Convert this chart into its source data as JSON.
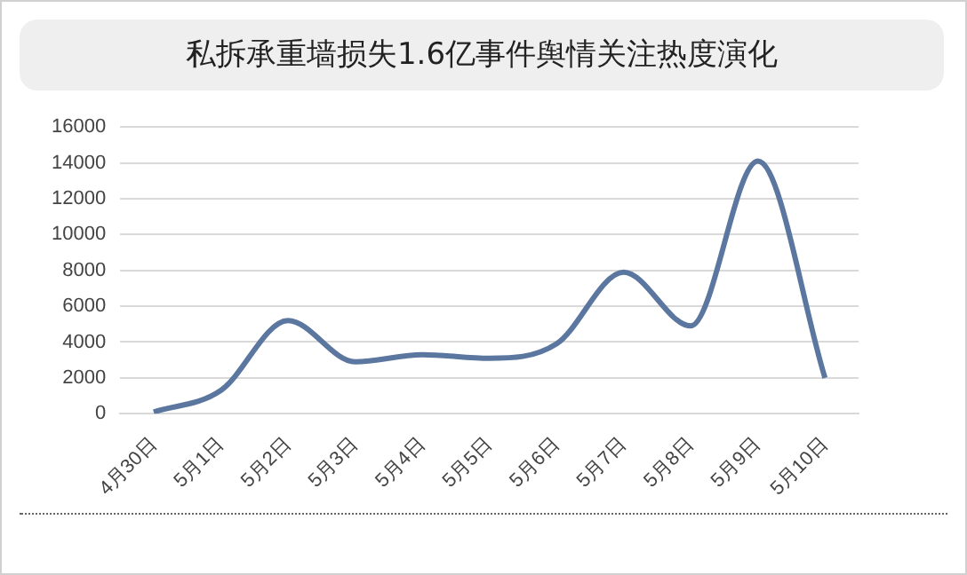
{
  "chart_data": {
    "type": "line",
    "title": "私拆承重墙损失1.6亿事件舆情关注热度演化",
    "categories": [
      "4月30日",
      "5月1日",
      "5月2日",
      "5月3日",
      "5月4日",
      "5月5日",
      "5月6日",
      "5月7日",
      "5月8日",
      "5月9日",
      "5月10日"
    ],
    "series": [
      {
        "color": "#5b77a0",
        "values": [
          100,
          1300,
          5200,
          2900,
          3300,
          3100,
          3900,
          7900,
          4900,
          14100,
          2000
        ]
      }
    ],
    "ylim": [
      0,
      16000
    ],
    "yticks": [
      0,
      2000,
      4000,
      6000,
      8000,
      10000,
      12000,
      14000,
      16000
    ],
    "grid": "y",
    "legend": false,
    "marker": "none",
    "line_style": "solid"
  }
}
